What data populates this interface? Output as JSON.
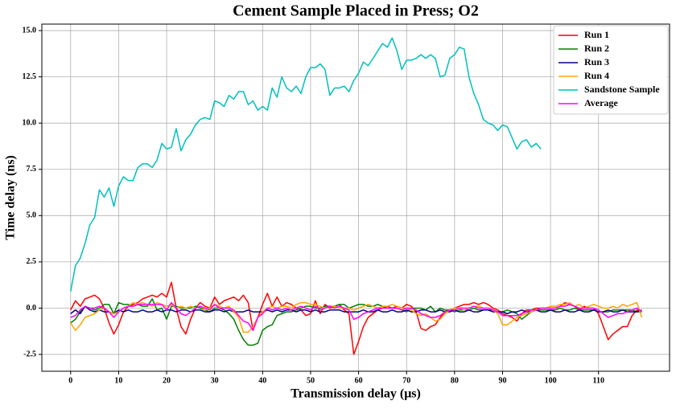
{
  "chart_data": {
    "type": "line",
    "title": "Cement Sample Placed in Press; O2",
    "x_label": "Transmission delay (μs)",
    "y_label": "Time delay (ns)",
    "x": [
      0,
      1,
      2,
      3,
      4,
      5,
      6,
      7,
      8,
      9,
      10,
      11,
      12,
      13,
      14,
      15,
      16,
      17,
      18,
      19,
      20,
      21,
      22,
      23,
      24,
      25,
      26,
      27,
      28,
      29,
      30,
      31,
      32,
      33,
      34,
      35,
      36,
      37,
      38,
      39,
      40,
      41,
      42,
      43,
      44,
      45,
      46,
      47,
      48,
      49,
      50,
      51,
      52,
      53,
      54,
      55,
      56,
      57,
      58,
      59,
      60,
      61,
      62,
      63,
      64,
      65,
      66,
      67,
      68,
      69,
      70,
      71,
      72,
      73,
      74,
      75,
      76,
      77,
      78,
      79,
      80,
      81,
      82,
      83,
      84,
      85,
      86,
      87,
      88,
      89,
      90,
      91,
      92,
      93,
      94,
      95,
      96,
      97,
      98,
      99,
      100,
      101,
      102,
      103,
      104,
      105,
      106,
      107,
      108,
      109,
      110,
      111,
      112,
      113,
      114,
      115,
      116,
      117,
      118,
      119
    ],
    "series": [
      {
        "name": "Run 1",
        "color": "#ff0000",
        "values": [
          -0.1,
          0.4,
          0.1,
          0.5,
          0.6,
          0.7,
          0.5,
          0.0,
          -0.8,
          -1.4,
          -0.9,
          -0.2,
          0.1,
          0.2,
          0.3,
          0.5,
          0.6,
          0.7,
          0.6,
          0.8,
          0.6,
          1.4,
          0.0,
          -1.0,
          -1.4,
          -0.6,
          0.0,
          0.3,
          0.1,
          0.0,
          0.6,
          0.2,
          0.4,
          0.5,
          0.6,
          0.4,
          0.7,
          0.3,
          -1.2,
          -0.5,
          0.2,
          0.8,
          0.1,
          0.6,
          0.1,
          0.3,
          0.2,
          0.0,
          -0.1,
          -0.4,
          -0.3,
          0.4,
          -0.3,
          0.2,
          0.0,
          0.1,
          0.2,
          -0.1,
          -0.3,
          -2.5,
          -1.8,
          -1.0,
          -0.5,
          -0.3,
          -0.1,
          0.0,
          0.1,
          0.0,
          0.1,
          0.0,
          0.2,
          0.1,
          -0.2,
          -1.1,
          -1.2,
          -1.0,
          -0.9,
          -0.5,
          -0.2,
          -0.1,
          0.0,
          0.1,
          0.2,
          0.2,
          0.3,
          0.2,
          0.3,
          0.2,
          0.0,
          -0.1,
          -0.3,
          -0.4,
          -0.5,
          -0.7,
          -0.3,
          -0.1,
          -0.1,
          0.0,
          0.0,
          0.0,
          0.0,
          0.0,
          0.1,
          0.3,
          0.2,
          0.1,
          -0.1,
          0.1,
          0.0,
          0.0,
          -0.3,
          -1.0,
          -1.7,
          -1.4,
          -1.2,
          -1.0,
          -1.0,
          -0.4,
          -0.1,
          -0.2
        ]
      },
      {
        "name": "Run 2",
        "color": "#008000",
        "values": [
          -0.8,
          -0.6,
          -0.2,
          0.1,
          0.0,
          -0.1,
          0.0,
          0.2,
          0.2,
          -0.3,
          0.3,
          0.2,
          0.2,
          0.1,
          0.2,
          0.1,
          0.1,
          0.5,
          -0.1,
          0.0,
          -0.6,
          0.1,
          0.1,
          0.0,
          0.0,
          0.0,
          0.1,
          0.0,
          -0.1,
          -0.2,
          0.0,
          0.0,
          -0.1,
          -0.3,
          -0.6,
          -1.2,
          -1.7,
          -2.0,
          -2.0,
          -1.9,
          -1.2,
          -1.0,
          -0.9,
          -0.4,
          -0.3,
          -0.2,
          -0.2,
          -0.1,
          0.0,
          0.1,
          0.1,
          0.0,
          0.0,
          0.1,
          0.1,
          0.1,
          0.2,
          0.2,
          0.0,
          0.1,
          0.2,
          0.2,
          0.1,
          0.1,
          0.2,
          0.1,
          0.0,
          0.0,
          0.0,
          -0.1,
          -0.2,
          0.0,
          0.0,
          0.0,
          -0.1,
          0.1,
          -0.2,
          0.0,
          -0.1,
          -0.1,
          -0.2,
          -0.1,
          -0.1,
          -0.1,
          0.0,
          -0.1,
          -0.1,
          -0.1,
          -0.1,
          -0.2,
          -0.2,
          -0.1,
          -0.2,
          -0.3,
          -0.6,
          -0.4,
          -0.2,
          -0.1,
          -0.1,
          -0.1,
          -0.1,
          -0.1,
          0.0,
          -0.1,
          -0.1,
          0.0,
          -0.1,
          -0.1,
          -0.1,
          -0.1,
          -0.2,
          -0.2,
          -0.2,
          -0.1,
          -0.1,
          -0.1,
          -0.1,
          -0.1,
          -0.2,
          -0.2
        ]
      },
      {
        "name": "Run 3",
        "color": "#00008b",
        "values": [
          -0.3,
          -0.1,
          -0.3,
          0.1,
          -0.1,
          -0.2,
          -0.1,
          -0.2,
          -0.2,
          -0.3,
          -0.1,
          -0.2,
          -0.1,
          -0.2,
          -0.2,
          -0.1,
          -0.2,
          -0.2,
          -0.1,
          -0.2,
          -0.1,
          -0.1,
          -0.2,
          -0.1,
          -0.1,
          -0.2,
          -0.1,
          -0.1,
          -0.2,
          -0.2,
          -0.1,
          -0.1,
          -0.2,
          -0.1,
          -0.2,
          -0.2,
          -0.2,
          -0.1,
          -0.2,
          -0.2,
          -0.2,
          -0.1,
          -0.2,
          -0.1,
          -0.2,
          -0.1,
          -0.1,
          -0.2,
          -0.1,
          -0.1,
          -0.2,
          -0.1,
          -0.2,
          -0.2,
          -0.1,
          -0.1,
          -0.1,
          -0.2,
          -0.2,
          -0.2,
          -0.2,
          -0.1,
          -0.2,
          -0.2,
          -0.1,
          -0.2,
          -0.2,
          -0.1,
          -0.2,
          -0.2,
          -0.1,
          -0.2,
          -0.2,
          -0.1,
          -0.1,
          -0.2,
          -0.2,
          -0.1,
          -0.2,
          -0.2,
          -0.1,
          -0.2,
          -0.2,
          -0.1,
          -0.2,
          -0.2,
          -0.1,
          -0.1,
          -0.2,
          -0.2,
          -0.2,
          -0.3,
          -0.2,
          -0.2,
          -0.1,
          -0.2,
          -0.2,
          -0.1,
          -0.2,
          -0.2,
          -0.1,
          -0.2,
          -0.2,
          -0.1,
          -0.2,
          -0.2,
          -0.1,
          -0.2,
          -0.2,
          -0.1,
          -0.2,
          -0.2,
          -0.1,
          -0.2,
          -0.2,
          -0.1,
          -0.2,
          -0.2,
          -0.2,
          -0.1
        ]
      },
      {
        "name": "Run 4",
        "color": "#ffa500",
        "values": [
          -0.8,
          -1.2,
          -0.9,
          -0.5,
          -0.4,
          -0.3,
          -0.1,
          0.0,
          -0.2,
          -0.3,
          -0.2,
          0.0,
          0.1,
          0.3,
          0.2,
          0.3,
          0.2,
          0.1,
          0.3,
          0.2,
          0.1,
          0.2,
          0.0,
          0.1,
          0.0,
          0.1,
          0.0,
          0.1,
          -0.1,
          0.0,
          0.2,
          0.1,
          0.0,
          0.1,
          -0.2,
          -0.5,
          -1.3,
          -1.3,
          -1.0,
          -0.5,
          -0.2,
          0.0,
          0.1,
          0.0,
          0.1,
          0.1,
          0.0,
          0.2,
          0.3,
          0.3,
          0.2,
          0.2,
          0.1,
          0.0,
          0.1,
          0.1,
          0.0,
          0.0,
          0.0,
          -0.1,
          0.0,
          0.1,
          0.2,
          0.1,
          0.0,
          0.1,
          0.1,
          0.2,
          0.1,
          0.0,
          0.0,
          -0.1,
          -0.3,
          -0.4,
          -0.3,
          -0.5,
          -0.7,
          -0.6,
          -0.3,
          -0.1,
          0.0,
          0.0,
          -0.1,
          0.0,
          0.1,
          0.1,
          0.0,
          0.0,
          -0.1,
          -0.3,
          -0.9,
          -0.9,
          -0.7,
          -0.5,
          -0.4,
          -0.3,
          -0.2,
          -0.1,
          0.0,
          0.0,
          0.1,
          0.1,
          0.2,
          0.2,
          0.3,
          0.1,
          0.2,
          0.0,
          0.1,
          0.2,
          0.1,
          0.0,
          0.0,
          0.1,
          0.0,
          0.2,
          0.1,
          0.2,
          0.3,
          -0.5
        ]
      },
      {
        "name": "Sandstone Sample",
        "color": "#00bfbf",
        "values": [
          0.9,
          2.3,
          2.7,
          3.5,
          4.5,
          4.9,
          6.4,
          6.0,
          6.5,
          5.5,
          6.6,
          7.1,
          6.9,
          6.9,
          7.6,
          7.8,
          7.8,
          7.6,
          8.0,
          8.9,
          8.6,
          8.7,
          9.7,
          8.5,
          9.1,
          9.4,
          9.9,
          10.2,
          10.3,
          10.2,
          11.2,
          11.1,
          10.9,
          11.5,
          11.3,
          11.7,
          11.7,
          11.0,
          11.2,
          10.7,
          10.9,
          10.7,
          11.9,
          11.4,
          12.5,
          11.9,
          11.7,
          12.0,
          11.6,
          12.5,
          13.0,
          13.0,
          13.2,
          12.9,
          11.5,
          11.9,
          11.9,
          12.0,
          11.7,
          12.3,
          12.7,
          13.3,
          13.1,
          13.5,
          13.9,
          14.3,
          14.1,
          14.6,
          13.9,
          12.9,
          13.4,
          13.4,
          13.5,
          13.7,
          13.5,
          13.7,
          13.5,
          12.5,
          12.6,
          13.5,
          13.7,
          14.1,
          14.0,
          12.5,
          11.6,
          11.0,
          10.2,
          10.0,
          9.9,
          9.6,
          9.9,
          9.8,
          9.2,
          8.6,
          9.0,
          9.1,
          8.7,
          8.9,
          8.6,
          null,
          null,
          null,
          null,
          null,
          null,
          null,
          null,
          null,
          null,
          null,
          null,
          null,
          null,
          null,
          null,
          null,
          null,
          null,
          null,
          null
        ]
      },
      {
        "name": "Average",
        "color": "#ff00ff",
        "values": [
          -0.5,
          -0.4,
          -0.1,
          0.1,
          0.0,
          0.0,
          0.1,
          0.0,
          -0.2,
          -0.5,
          -0.2,
          0.0,
          0.1,
          0.1,
          0.2,
          0.2,
          0.2,
          0.2,
          0.2,
          0.2,
          -0.1,
          0.3,
          0.0,
          -0.3,
          -0.4,
          -0.2,
          0.0,
          0.1,
          0.0,
          -0.1,
          0.2,
          0.0,
          0.0,
          0.0,
          -0.1,
          -0.4,
          -0.7,
          -0.8,
          -1.2,
          -0.5,
          -0.3,
          0.0,
          -0.1,
          0.0,
          -0.1,
          0.0,
          -0.1,
          0.0,
          0.1,
          0.0,
          -0.1,
          0.1,
          -0.1,
          0.0,
          0.1,
          0.0,
          0.1,
          0.0,
          -0.1,
          -0.6,
          -0.5,
          -0.3,
          -0.2,
          -0.1,
          0.0,
          0.0,
          0.0,
          0.0,
          0.0,
          -0.1,
          0.0,
          0.0,
          -0.1,
          -0.3,
          -0.4,
          -0.5,
          -0.5,
          -0.4,
          -0.2,
          -0.1,
          -0.1,
          0.0,
          0.0,
          0.0,
          0.1,
          0.0,
          0.0,
          0.0,
          -0.1,
          -0.2,
          -0.4,
          -0.4,
          -0.4,
          -0.4,
          -0.3,
          -0.2,
          -0.1,
          -0.1,
          0.0,
          0.0,
          0.0,
          0.0,
          0.1,
          0.1,
          0.2,
          0.1,
          0.0,
          0.0,
          0.0,
          0.0,
          -0.1,
          -0.3,
          -0.5,
          -0.4,
          -0.3,
          -0.3,
          -0.2,
          -0.1,
          0.0,
          -0.2
        ]
      }
    ],
    "xlim": [
      -6,
      124.8
    ],
    "ylim": [
      -3.41,
      15.35
    ],
    "xticks": [
      0,
      10,
      20,
      30,
      40,
      50,
      60,
      70,
      80,
      90,
      100,
      110
    ],
    "yticks": [
      -2.5,
      {
        "value": 0,
        "label": "0.0"
      },
      2.5,
      {
        "value": 5,
        "label": "5.0"
      },
      7.5,
      {
        "value": 10,
        "label": "10.0"
      },
      12.5,
      {
        "value": 15,
        "label": "15.0"
      }
    ],
    "grid": true,
    "legend": "upper right"
  }
}
